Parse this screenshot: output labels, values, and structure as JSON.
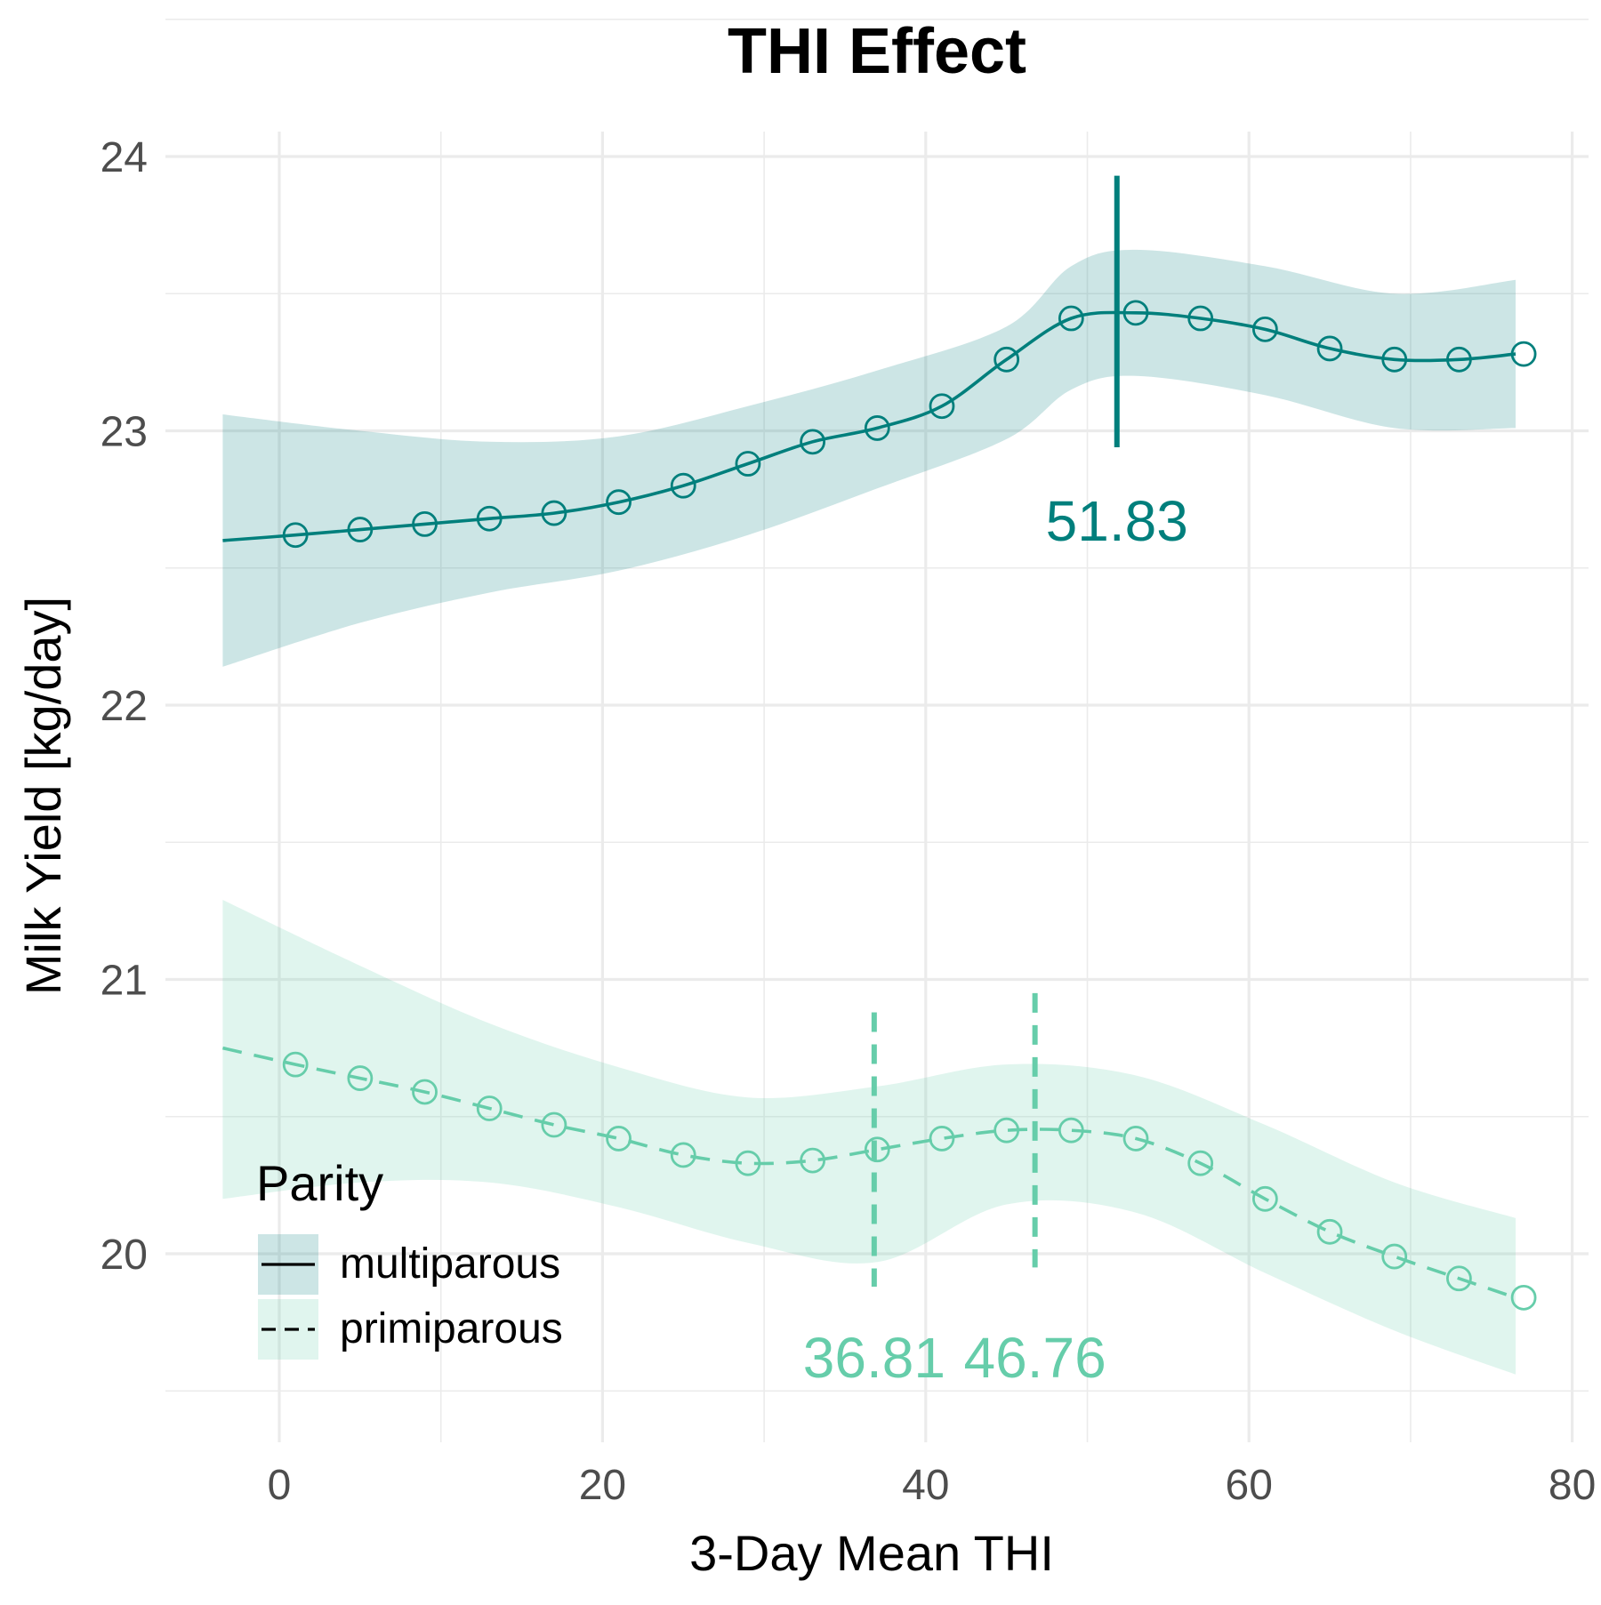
{
  "chart_data": {
    "type": "line",
    "title": "THI Effect",
    "xlabel": "3-Day Mean THI",
    "ylabel": "Milk Yield [kg/day]",
    "xlim": [
      -8.5,
      81
    ],
    "ylim": [
      19.35,
      24.25
    ],
    "x_ticks": [
      0,
      20,
      40,
      60,
      80
    ],
    "y_ticks": [
      20,
      21,
      22,
      23,
      24
    ],
    "grid": true,
    "legend": {
      "title": "Parity",
      "position": "bottom-left"
    },
    "series": [
      {
        "name": "multiparous",
        "color": "#007f7c",
        "line_style": "solid",
        "curve": {
          "x": [
            -3.5,
            1,
            5,
            9,
            13,
            17,
            21,
            25,
            29,
            33,
            37,
            41,
            45,
            49,
            53,
            57,
            61,
            65,
            69,
            73,
            76.5
          ],
          "y": [
            22.6,
            22.62,
            22.64,
            22.66,
            22.68,
            22.7,
            22.74,
            22.8,
            22.88,
            22.96,
            23.01,
            23.09,
            23.26,
            23.41,
            23.43,
            23.41,
            23.37,
            23.3,
            23.26,
            23.26,
            23.28
          ]
        },
        "points": {
          "x": [
            1,
            5,
            9,
            13,
            17,
            21,
            25,
            29,
            33,
            37,
            41,
            45,
            49,
            53,
            57,
            61,
            65,
            69,
            73,
            77
          ],
          "y": [
            22.62,
            22.64,
            22.66,
            22.68,
            22.7,
            22.74,
            22.8,
            22.88,
            22.96,
            23.01,
            23.09,
            23.26,
            23.41,
            23.43,
            23.41,
            23.37,
            23.3,
            23.26,
            23.26,
            23.28
          ]
        },
        "band": {
          "x": [
            -3.5,
            5,
            13,
            21,
            29,
            37,
            45,
            49,
            53,
            61,
            69,
            76.5
          ],
          "upper": [
            23.06,
            23.0,
            22.96,
            22.98,
            23.09,
            23.22,
            23.38,
            23.6,
            23.66,
            23.6,
            23.5,
            23.55
          ],
          "lower": [
            22.14,
            22.3,
            22.41,
            22.49,
            22.62,
            22.79,
            22.97,
            23.15,
            23.2,
            23.13,
            23.01,
            23.01
          ]
        },
        "breakpoints": [
          {
            "x": 51.83,
            "label": "51.83",
            "y_range": [
              22.94,
              23.93
            ]
          }
        ]
      },
      {
        "name": "primiparous",
        "color": "#66cdaa",
        "line_style": "dashed",
        "curve": {
          "x": [
            -3.5,
            1,
            5,
            9,
            13,
            17,
            21,
            25,
            29,
            33,
            37,
            41,
            45,
            49,
            53,
            57,
            61,
            65,
            69,
            73,
            76.5
          ],
          "y": [
            20.75,
            20.69,
            20.64,
            20.59,
            20.53,
            20.47,
            20.42,
            20.36,
            20.33,
            20.34,
            20.38,
            20.42,
            20.45,
            20.45,
            20.42,
            20.33,
            20.2,
            20.08,
            19.99,
            19.91,
            19.84
          ]
        },
        "points": {
          "x": [
            1,
            5,
            9,
            13,
            17,
            21,
            25,
            29,
            33,
            37,
            41,
            45,
            49,
            53,
            57,
            61,
            65,
            69,
            73,
            77
          ],
          "y": [
            20.69,
            20.64,
            20.59,
            20.53,
            20.47,
            20.42,
            20.36,
            20.33,
            20.34,
            20.38,
            20.42,
            20.45,
            20.45,
            20.42,
            20.33,
            20.2,
            20.08,
            19.99,
            19.91,
            19.84
          ]
        },
        "band": {
          "x": [
            -3.5,
            5,
            13,
            21,
            29,
            37,
            45,
            53,
            61,
            69,
            76.5
          ],
          "upper": [
            21.29,
            21.05,
            20.84,
            20.68,
            20.57,
            20.61,
            20.69,
            20.65,
            20.47,
            20.26,
            20.13
          ],
          "lower": [
            20.2,
            20.26,
            20.26,
            20.17,
            20.04,
            19.97,
            20.18,
            20.15,
            19.93,
            19.72,
            19.56
          ]
        },
        "breakpoints": [
          {
            "x": 36.81,
            "label": "36.81",
            "y_range": [
              19.88,
              20.88
            ]
          },
          {
            "x": 46.76,
            "label": "46.76",
            "y_range": [
              19.95,
              20.95
            ]
          }
        ]
      }
    ]
  },
  "colors": {
    "multiparous": "#007f7c",
    "primiparous": "#66cdaa",
    "grid": "#ebebeb",
    "tick_text": "#4d4d4d"
  }
}
